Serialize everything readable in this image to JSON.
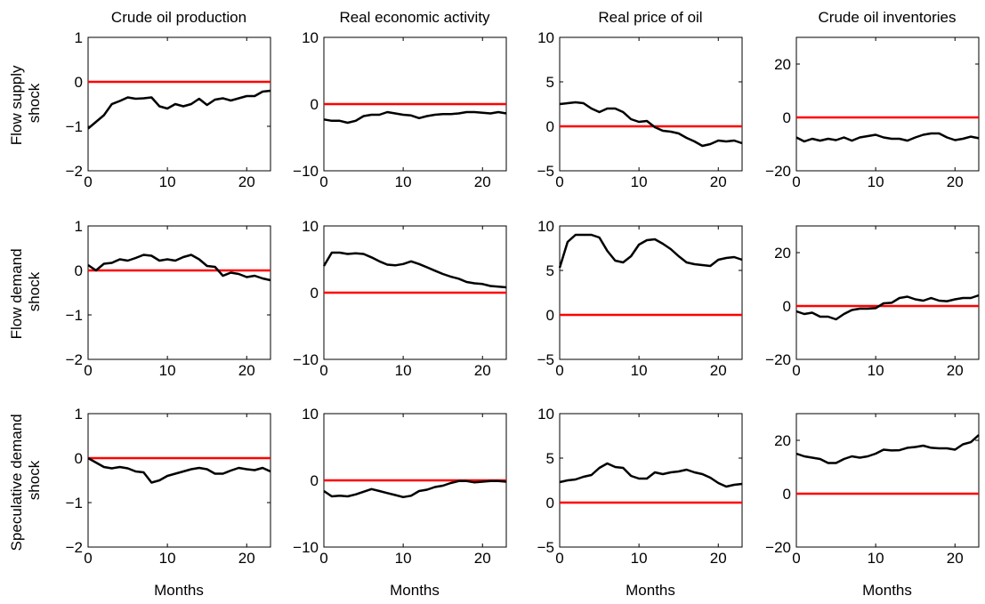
{
  "colors": {
    "zero_line": "#ff0000",
    "response_line": "#000000",
    "axes": "#000000"
  },
  "columns": [
    "Crude oil production",
    "Real economic activity",
    "Real price of oil",
    "Crude oil inventories"
  ],
  "rows": [
    {
      "label_lines": [
        "Flow supply",
        "shock"
      ]
    },
    {
      "label_lines": [
        "Flow demand",
        "shock"
      ]
    },
    {
      "label_lines": [
        "Speculative demand",
        "shock"
      ]
    }
  ],
  "xlabel": "Months",
  "chart_data": [
    {
      "type": "line",
      "row": 0,
      "col": 0,
      "title": "Crude oil production",
      "xlabel": "",
      "ylabel": "Flow supply shock",
      "xlim": [
        0,
        23
      ],
      "ylim": [
        -2,
        1
      ],
      "xticks": [
        0,
        10,
        20
      ],
      "yticks": [
        -2,
        -1,
        0,
        1
      ],
      "zero_line": 0,
      "grid": false,
      "x": [
        0,
        1,
        2,
        3,
        4,
        5,
        6,
        7,
        8,
        9,
        10,
        11,
        12,
        13,
        14,
        15,
        16,
        17,
        18,
        19,
        20,
        21,
        22,
        23
      ],
      "series": [
        {
          "values": [
            -1.05,
            -0.9,
            -0.75,
            -0.5,
            -0.43,
            -0.35,
            -0.38,
            -0.37,
            -0.35,
            -0.55,
            -0.6,
            -0.5,
            -0.55,
            -0.5,
            -0.38,
            -0.52,
            -0.4,
            -0.37,
            -0.42,
            -0.37,
            -0.32,
            -0.32,
            -0.22,
            -0.2
          ]
        }
      ]
    },
    {
      "type": "line",
      "row": 0,
      "col": 1,
      "title": "Real economic activity",
      "xlabel": "",
      "xlim": [
        0,
        23
      ],
      "ylim": [
        -10,
        10
      ],
      "xticks": [
        0,
        10,
        20
      ],
      "yticks": [
        -10,
        0,
        10
      ],
      "zero_line": 0,
      "grid": false,
      "x": [
        0,
        1,
        2,
        3,
        4,
        5,
        6,
        7,
        8,
        9,
        10,
        11,
        12,
        13,
        14,
        15,
        16,
        17,
        18,
        19,
        20,
        21,
        22,
        23
      ],
      "series": [
        {
          "values": [
            -2.3,
            -2.5,
            -2.5,
            -2.8,
            -2.5,
            -1.8,
            -1.6,
            -1.6,
            -1.2,
            -1.4,
            -1.6,
            -1.7,
            -2.1,
            -1.8,
            -1.6,
            -1.5,
            -1.5,
            -1.4,
            -1.2,
            -1.2,
            -1.3,
            -1.4,
            -1.2,
            -1.4
          ]
        }
      ]
    },
    {
      "type": "line",
      "row": 0,
      "col": 2,
      "title": "Real price of oil",
      "xlabel": "",
      "xlim": [
        0,
        23
      ],
      "ylim": [
        -5,
        10
      ],
      "xticks": [
        0,
        10,
        20
      ],
      "yticks": [
        -5,
        0,
        5,
        10
      ],
      "zero_line": 0,
      "grid": false,
      "x": [
        0,
        1,
        2,
        3,
        4,
        5,
        6,
        7,
        8,
        9,
        10,
        11,
        12,
        13,
        14,
        15,
        16,
        17,
        18,
        19,
        20,
        21,
        22,
        23
      ],
      "series": [
        {
          "values": [
            2.5,
            2.6,
            2.7,
            2.6,
            2.0,
            1.6,
            2.0,
            2.0,
            1.6,
            0.8,
            0.5,
            0.6,
            -0.1,
            -0.5,
            -0.6,
            -0.8,
            -1.3,
            -1.7,
            -2.2,
            -2.0,
            -1.6,
            -1.7,
            -1.6,
            -1.9
          ]
        }
      ]
    },
    {
      "type": "line",
      "row": 0,
      "col": 3,
      "title": "Crude oil inventories",
      "xlabel": "",
      "xlim": [
        0,
        23
      ],
      "ylim": [
        -20,
        30
      ],
      "xticks": [
        0,
        10,
        20
      ],
      "yticks": [
        -20,
        0,
        20
      ],
      "zero_line": 0,
      "grid": false,
      "x": [
        0,
        1,
        2,
        3,
        4,
        5,
        6,
        7,
        8,
        9,
        10,
        11,
        12,
        13,
        14,
        15,
        16,
        17,
        18,
        19,
        20,
        21,
        22,
        23
      ],
      "series": [
        {
          "values": [
            -7.5,
            -9,
            -8,
            -8.7,
            -8,
            -8.5,
            -7.5,
            -8.7,
            -7.5,
            -7,
            -6.5,
            -7.5,
            -8,
            -8,
            -8.7,
            -7.5,
            -6.5,
            -6,
            -6,
            -7.5,
            -8.5,
            -8,
            -7.2,
            -7.8
          ]
        }
      ]
    },
    {
      "type": "line",
      "row": 1,
      "col": 0,
      "title": "",
      "xlabel": "",
      "ylabel": "Flow demand shock",
      "xlim": [
        0,
        23
      ],
      "ylim": [
        -2,
        1
      ],
      "xticks": [
        0,
        10,
        20
      ],
      "yticks": [
        -2,
        -1,
        0,
        1
      ],
      "zero_line": 0,
      "grid": false,
      "x": [
        0,
        1,
        2,
        3,
        4,
        5,
        6,
        7,
        8,
        9,
        10,
        11,
        12,
        13,
        14,
        15,
        16,
        17,
        18,
        19,
        20,
        21,
        22,
        23
      ],
      "series": [
        {
          "values": [
            0.12,
            0.0,
            0.15,
            0.17,
            0.25,
            0.22,
            0.28,
            0.35,
            0.33,
            0.22,
            0.25,
            0.22,
            0.3,
            0.35,
            0.25,
            0.1,
            0.08,
            -0.12,
            -0.05,
            -0.08,
            -0.15,
            -0.12,
            -0.18,
            -0.22
          ]
        }
      ]
    },
    {
      "type": "line",
      "row": 1,
      "col": 1,
      "title": "",
      "xlabel": "",
      "xlim": [
        0,
        23
      ],
      "ylim": [
        -10,
        10
      ],
      "xticks": [
        0,
        10,
        20
      ],
      "yticks": [
        -10,
        0,
        10
      ],
      "zero_line": 0,
      "grid": false,
      "x": [
        0,
        1,
        2,
        3,
        4,
        5,
        6,
        7,
        8,
        9,
        10,
        11,
        12,
        13,
        14,
        15,
        16,
        17,
        18,
        19,
        20,
        21,
        22,
        23
      ],
      "series": [
        {
          "values": [
            4.0,
            6.0,
            6.0,
            5.8,
            5.9,
            5.8,
            5.3,
            4.7,
            4.2,
            4.1,
            4.3,
            4.7,
            4.3,
            3.8,
            3.3,
            2.8,
            2.4,
            2.1,
            1.6,
            1.4,
            1.3,
            1.0,
            0.9,
            0.8
          ]
        }
      ]
    },
    {
      "type": "line",
      "row": 1,
      "col": 2,
      "title": "",
      "xlabel": "",
      "xlim": [
        0,
        23
      ],
      "ylim": [
        -5,
        10
      ],
      "xticks": [
        0,
        10,
        20
      ],
      "yticks": [
        -5,
        0,
        5,
        10
      ],
      "zero_line": 0,
      "grid": false,
      "x": [
        0,
        1,
        2,
        3,
        4,
        5,
        6,
        7,
        8,
        9,
        10,
        11,
        12,
        13,
        14,
        15,
        16,
        17,
        18,
        19,
        20,
        21,
        22,
        23
      ],
      "series": [
        {
          "values": [
            5.3,
            8.2,
            9.0,
            9.0,
            9.0,
            8.7,
            7.2,
            6.1,
            5.9,
            6.6,
            7.9,
            8.4,
            8.5,
            8.0,
            7.4,
            6.6,
            5.9,
            5.7,
            5.6,
            5.5,
            6.2,
            6.4,
            6.5,
            6.2
          ]
        }
      ]
    },
    {
      "type": "line",
      "row": 1,
      "col": 3,
      "title": "",
      "xlabel": "",
      "xlim": [
        0,
        23
      ],
      "ylim": [
        -20,
        30
      ],
      "xticks": [
        0,
        10,
        20
      ],
      "yticks": [
        -20,
        0,
        20
      ],
      "zero_line": 0,
      "grid": false,
      "x": [
        0,
        1,
        2,
        3,
        4,
        5,
        6,
        7,
        8,
        9,
        10,
        11,
        12,
        13,
        14,
        15,
        16,
        17,
        18,
        19,
        20,
        21,
        22,
        23
      ],
      "series": [
        {
          "values": [
            -2,
            -3,
            -2.5,
            -4,
            -4,
            -5,
            -3,
            -1.5,
            -1,
            -1,
            -0.8,
            1,
            1.2,
            3,
            3.5,
            2.5,
            2,
            3,
            2,
            1.8,
            2.5,
            3,
            3,
            4
          ]
        }
      ]
    },
    {
      "type": "line",
      "row": 2,
      "col": 0,
      "title": "",
      "xlabel": "Months",
      "ylabel": "Speculative demand shock",
      "xlim": [
        0,
        23
      ],
      "ylim": [
        -2,
        1
      ],
      "xticks": [
        0,
        10,
        20
      ],
      "yticks": [
        -2,
        -1,
        0,
        1
      ],
      "zero_line": 0,
      "grid": false,
      "x": [
        0,
        1,
        2,
        3,
        4,
        5,
        6,
        7,
        8,
        9,
        10,
        11,
        12,
        13,
        14,
        15,
        16,
        17,
        18,
        19,
        20,
        21,
        22,
        23
      ],
      "series": [
        {
          "values": [
            0.0,
            -0.1,
            -0.2,
            -0.23,
            -0.2,
            -0.23,
            -0.3,
            -0.32,
            -0.55,
            -0.5,
            -0.4,
            -0.35,
            -0.3,
            -0.25,
            -0.22,
            -0.25,
            -0.35,
            -0.35,
            -0.28,
            -0.22,
            -0.25,
            -0.27,
            -0.22,
            -0.3
          ]
        }
      ]
    },
    {
      "type": "line",
      "row": 2,
      "col": 1,
      "title": "",
      "xlabel": "Months",
      "xlim": [
        0,
        23
      ],
      "ylim": [
        -10,
        10
      ],
      "xticks": [
        0,
        10,
        20
      ],
      "yticks": [
        -10,
        0,
        10
      ],
      "zero_line": 0,
      "grid": false,
      "x": [
        0,
        1,
        2,
        3,
        4,
        5,
        6,
        7,
        8,
        9,
        10,
        11,
        12,
        13,
        14,
        15,
        16,
        17,
        18,
        19,
        20,
        21,
        22,
        23
      ],
      "series": [
        {
          "values": [
            -1.6,
            -2.4,
            -2.3,
            -2.4,
            -2.1,
            -1.7,
            -1.3,
            -1.6,
            -1.9,
            -2.2,
            -2.5,
            -2.3,
            -1.6,
            -1.4,
            -1.0,
            -0.8,
            -0.4,
            -0.1,
            -0.1,
            -0.3,
            -0.2,
            -0.1,
            -0.1,
            -0.2
          ]
        }
      ]
    },
    {
      "type": "line",
      "row": 2,
      "col": 2,
      "title": "",
      "xlabel": "Months",
      "xlim": [
        0,
        23
      ],
      "ylim": [
        -5,
        10
      ],
      "xticks": [
        0,
        10,
        20
      ],
      "yticks": [
        -5,
        0,
        5,
        10
      ],
      "zero_line": 0,
      "grid": false,
      "x": [
        0,
        1,
        2,
        3,
        4,
        5,
        6,
        7,
        8,
        9,
        10,
        11,
        12,
        13,
        14,
        15,
        16,
        17,
        18,
        19,
        20,
        21,
        22,
        23
      ],
      "series": [
        {
          "values": [
            2.3,
            2.5,
            2.6,
            2.9,
            3.1,
            3.9,
            4.4,
            4.0,
            3.9,
            3.0,
            2.7,
            2.7,
            3.4,
            3.2,
            3.4,
            3.5,
            3.7,
            3.4,
            3.2,
            2.8,
            2.2,
            1.8,
            2.0,
            2.1
          ]
        }
      ]
    },
    {
      "type": "line",
      "row": 2,
      "col": 3,
      "title": "",
      "xlabel": "Months",
      "xlim": [
        0,
        23
      ],
      "ylim": [
        -20,
        30
      ],
      "xticks": [
        0,
        10,
        20
      ],
      "yticks": [
        -20,
        0,
        20
      ],
      "zero_line": 0,
      "grid": false,
      "x": [
        0,
        1,
        2,
        3,
        4,
        5,
        6,
        7,
        8,
        9,
        10,
        11,
        12,
        13,
        14,
        15,
        16,
        17,
        18,
        19,
        20,
        21,
        22,
        23
      ],
      "series": [
        {
          "values": [
            15,
            14,
            13.5,
            13,
            11.5,
            11.5,
            13,
            14,
            13.5,
            14,
            15,
            16.5,
            16.2,
            16.3,
            17.2,
            17.5,
            18,
            17.2,
            17,
            17,
            16.5,
            18.5,
            19.3,
            22
          ]
        }
      ]
    }
  ]
}
